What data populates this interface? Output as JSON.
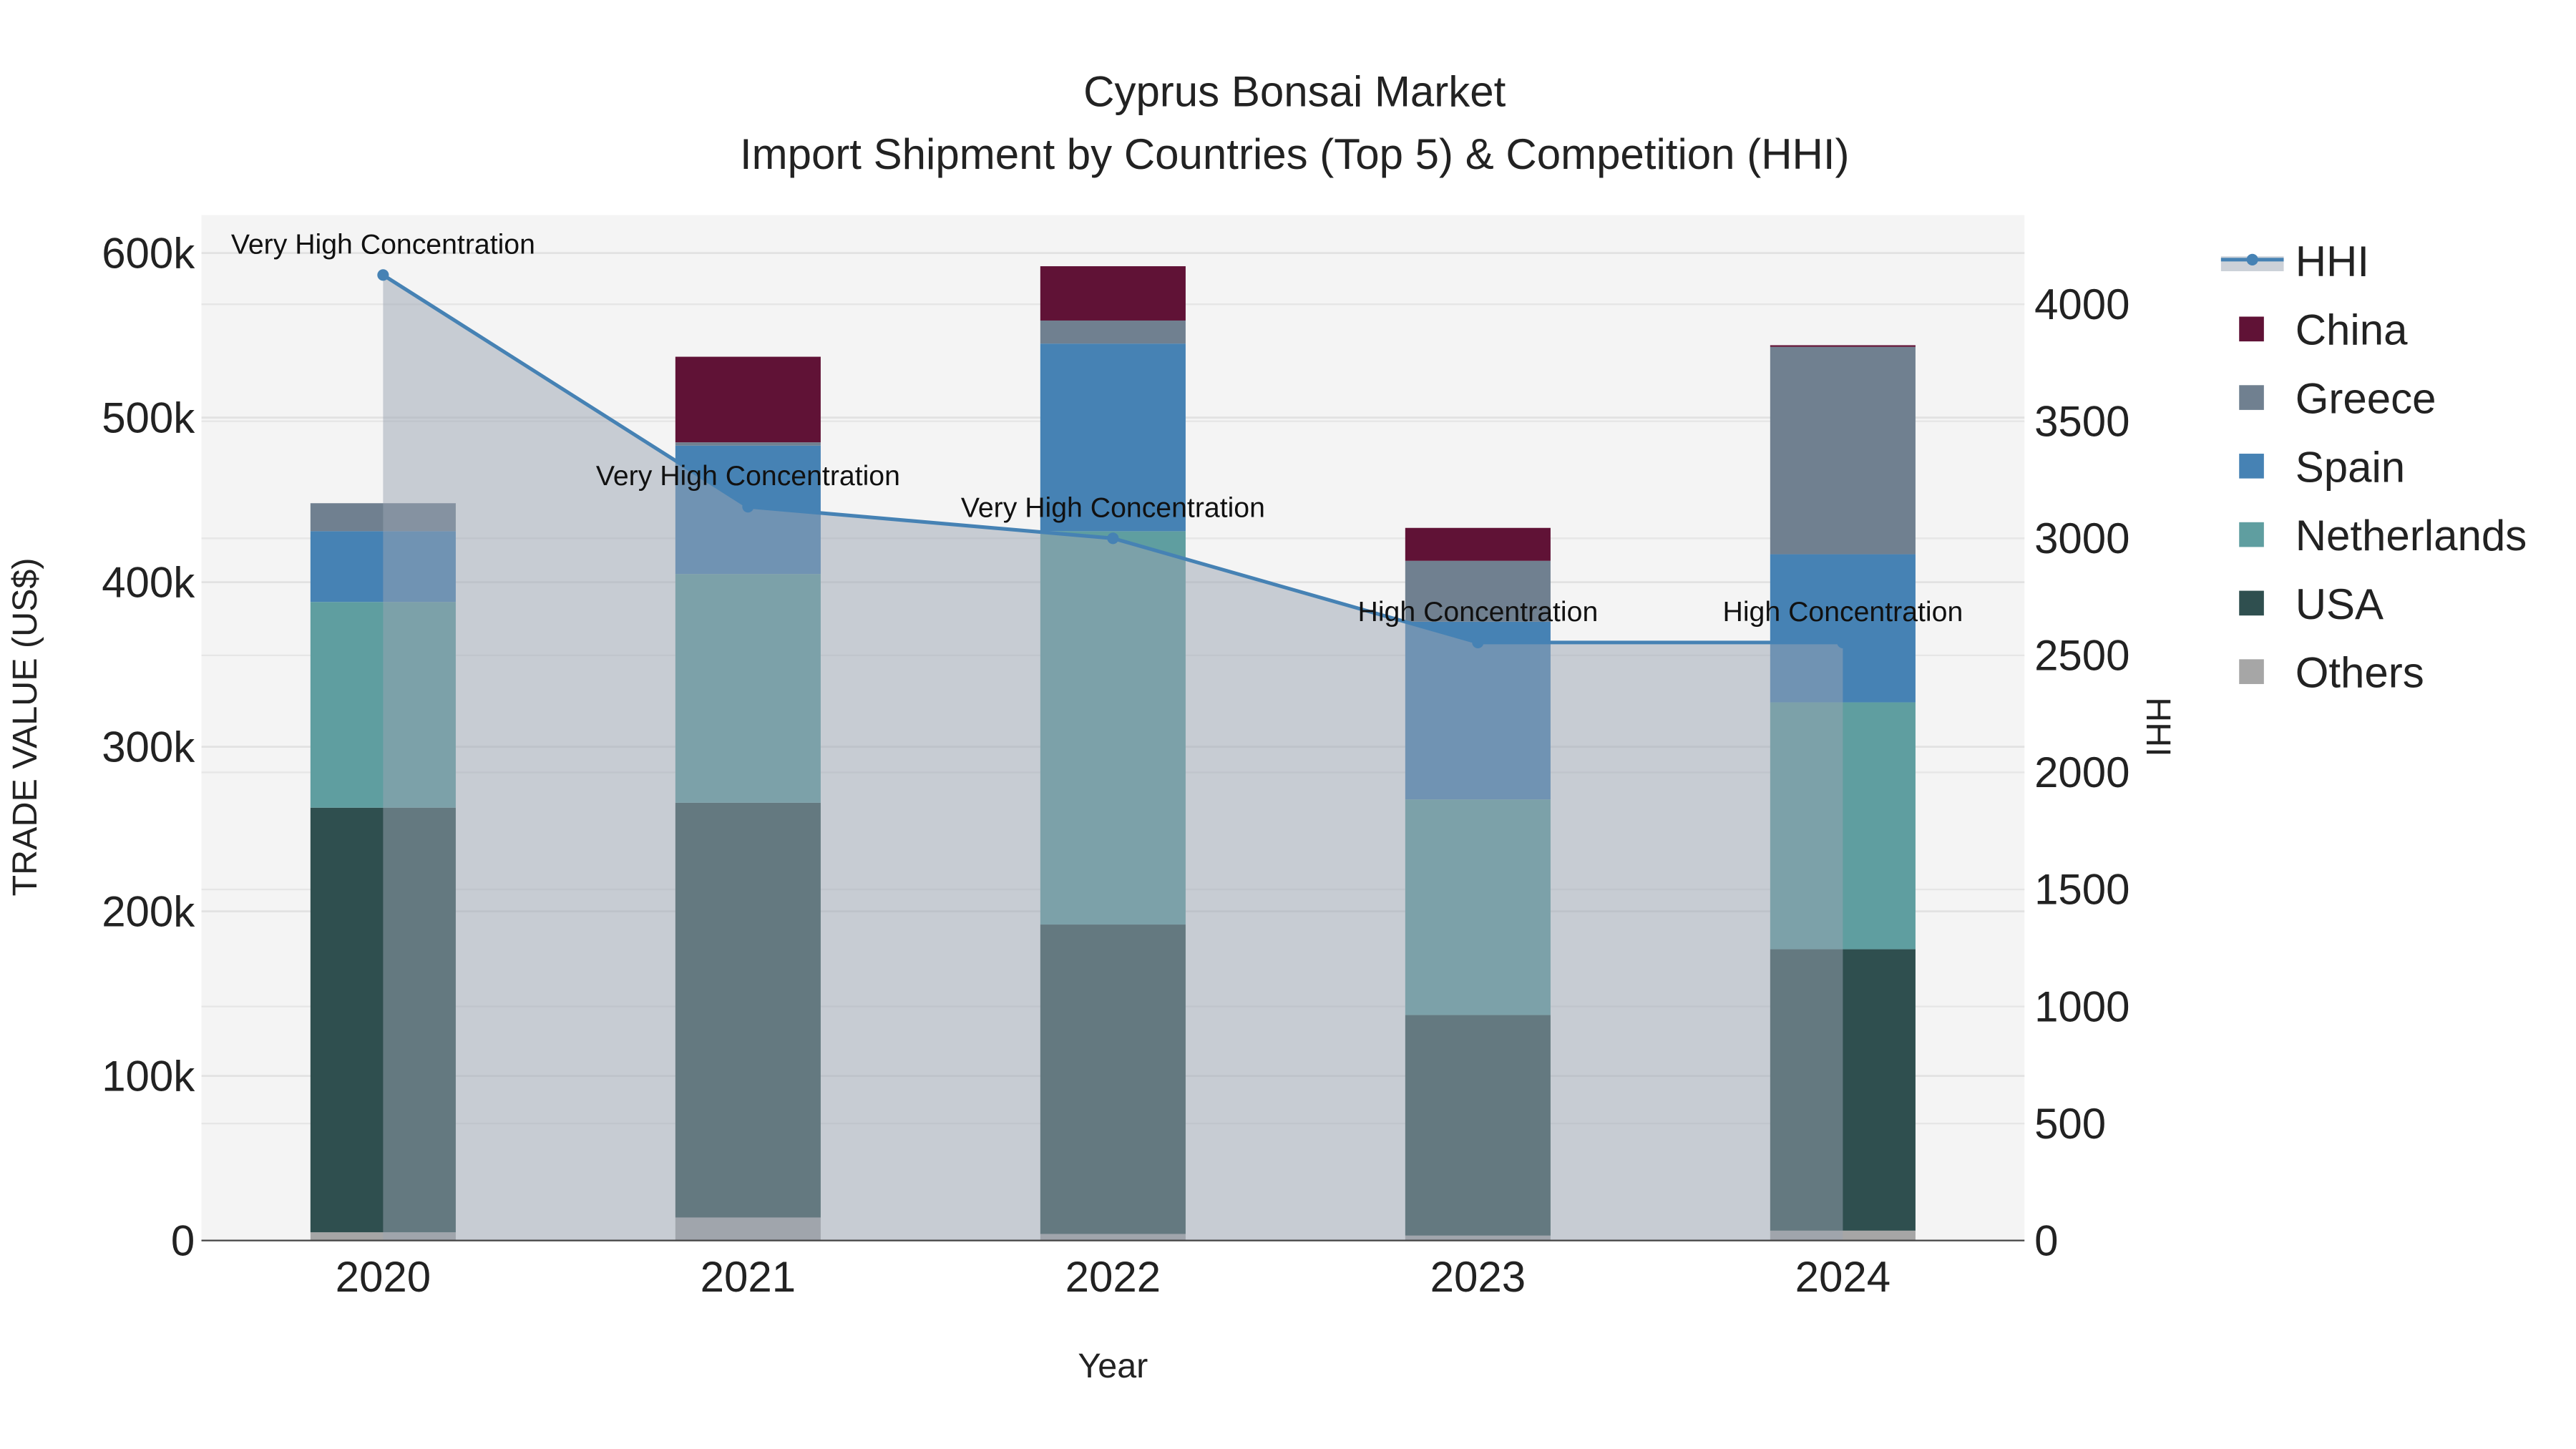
{
  "chart_data": {
    "type": "bar",
    "title": "Cyprus Bonsai Market",
    "subtitle": "Import Shipment by Countries (Top 5) & Competition (HHI)",
    "xlabel": "Year",
    "ylabel": "TRADE VALUE (US$)",
    "y2label": "HHI",
    "categories": [
      "2020",
      "2021",
      "2022",
      "2023",
      "2024"
    ],
    "ylim": [
      0,
      620000
    ],
    "y_ticks": [
      0,
      100000,
      200000,
      300000,
      400000,
      500000,
      600000
    ],
    "y_tick_labels": [
      "0",
      "100k",
      "200k",
      "300k",
      "400k",
      "500k",
      "600k"
    ],
    "y2lim": [
      0,
      4380
    ],
    "y2_ticks": [
      0,
      500,
      1000,
      1500,
      2000,
      2500,
      3000,
      3500,
      4000
    ],
    "y2_tick_labels": [
      "0",
      "500",
      "1000",
      "1500",
      "2000",
      "2500",
      "3000",
      "3500",
      "4000"
    ],
    "grid": true,
    "stacked": true,
    "legend_position": "right",
    "series": [
      {
        "name": "Others",
        "color": "#a6a6a6",
        "values": [
          5000,
          14000,
          4000,
          3000,
          6000
        ]
      },
      {
        "name": "USA",
        "color": "#2f4f4f",
        "values": [
          258000,
          252000,
          188000,
          134000,
          171000
        ]
      },
      {
        "name": "Netherlands",
        "color": "#5f9ea0",
        "values": [
          125000,
          139000,
          239000,
          131000,
          150000
        ]
      },
      {
        "name": "Spain",
        "color": "#4682b4",
        "values": [
          43000,
          78000,
          114000,
          108000,
          90000
        ]
      },
      {
        "name": "Greece",
        "color": "#708090",
        "values": [
          17000,
          2000,
          14000,
          37000,
          126000
        ]
      },
      {
        "name": "China",
        "color": "#601236",
        "values": [
          0,
          52000,
          33000,
          20000,
          1000
        ]
      }
    ],
    "line": {
      "name": "HHI",
      "color": "#4682b4",
      "values": [
        4125,
        3135,
        3000,
        2555,
        2555
      ],
      "annotations": [
        "Very High Concentration",
        "Very High Concentration",
        "Very High Concentration",
        "High Concentration",
        "High Concentration"
      ]
    },
    "legend_order": [
      "HHI",
      "China",
      "Greece",
      "Spain",
      "Netherlands",
      "USA",
      "Others"
    ]
  }
}
